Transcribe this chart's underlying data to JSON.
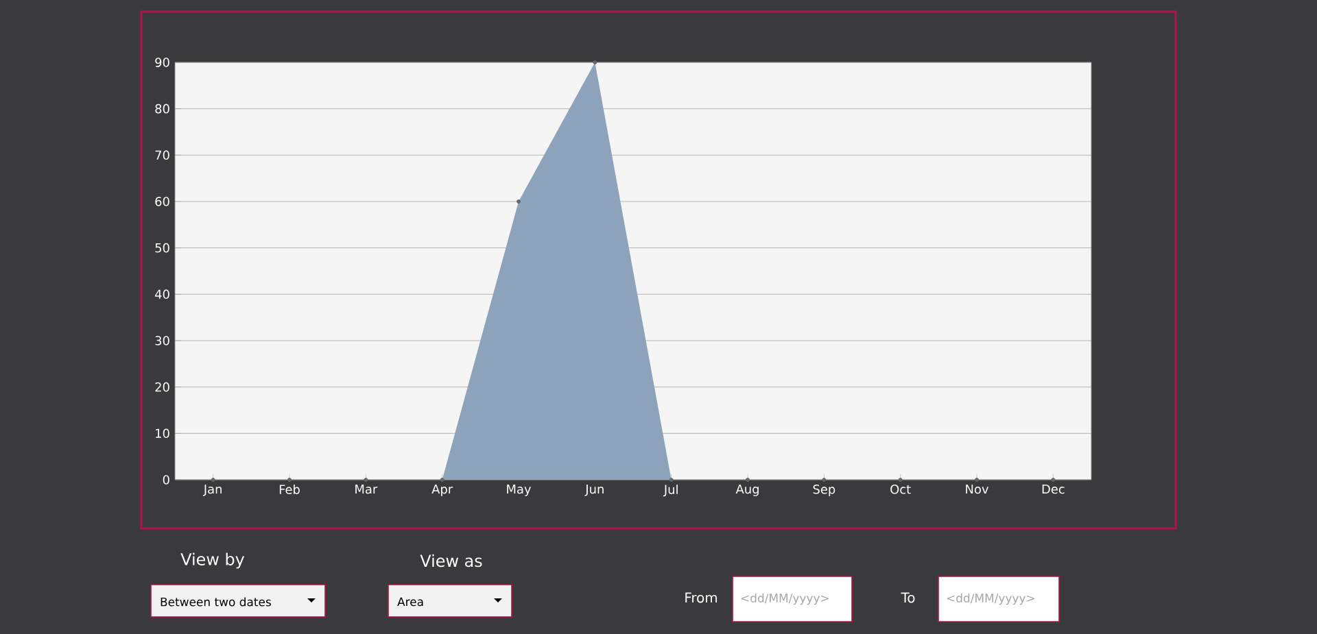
{
  "chart_data": {
    "type": "area",
    "categories": [
      "Jan",
      "Feb",
      "Mar",
      "Apr",
      "May",
      "Jun",
      "Jul",
      "Aug",
      "Sep",
      "Oct",
      "Nov",
      "Dec"
    ],
    "values": [
      0,
      0,
      0,
      0,
      60,
      90,
      0,
      0,
      0,
      0,
      0,
      0
    ],
    "color": "#8da2bb",
    "ylim": [
      0,
      90
    ],
    "yticks": [
      0,
      10,
      20,
      30,
      40,
      50,
      60,
      70,
      80,
      90
    ],
    "grid": "y",
    "marker": "circle",
    "annotations": [
      "View by",
      "Between two dates",
      "View as",
      "Area",
      "From",
      "<dd/MM/yyyy>",
      "To",
      "<dd/MM/yyyy>"
    ]
  }
}
